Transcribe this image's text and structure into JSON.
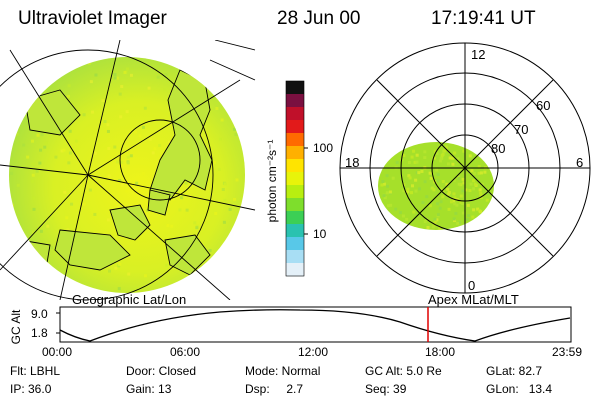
{
  "header": {
    "title": "Ultraviolet Imager",
    "date": "28 Jun 00",
    "time": "17:19:41 UT"
  },
  "colorbar": {
    "unit_label": "photon cm⁻²s⁻¹",
    "ticks": [
      "100",
      "10"
    ],
    "colors": [
      "#111111",
      "#7a1040",
      "#c0102a",
      "#e21a1a",
      "#ff6a00",
      "#ffb000",
      "#ffe400",
      "#e8f40a",
      "#b8ee10",
      "#7ede2c",
      "#3ccf55",
      "#2ac2b0",
      "#58c8e8",
      "#a8def4",
      "#e4f0f8"
    ]
  },
  "geo_map": {
    "label": "Geographic Lat/Lon",
    "disk_color": "#d6f020",
    "land_color": "#b8e63a",
    "outline_color": "#000000"
  },
  "polar_plot": {
    "label": "Apex MLat/MLT",
    "mlt_labels": [
      "12",
      "18",
      "6",
      "0"
    ],
    "mlat_labels": [
      "60",
      "70",
      "80"
    ],
    "aurora_color": "#a6e02a"
  },
  "altitude_plot": {
    "ylabel": "GC Alt",
    "yticks": [
      "9.0",
      "1.8"
    ],
    "xticks": [
      "00:00",
      "06:00",
      "12:00",
      "18:00",
      "23:59"
    ],
    "marker_color": "#e00000"
  },
  "footer": {
    "row1": {
      "flt": "Flt: LBHL",
      "door": "Door: Closed",
      "mode": "Mode: Normal",
      "gc_alt": "GC Alt: 5.0 Re",
      "glat": "GLat:  82.7"
    },
    "row2": {
      "ip": "IP: 36.0",
      "gain": "Gain: 13",
      "dsp": "Dsp:     2.7",
      "seq": "Seq: 39",
      "glon": "GLon:   13.4"
    }
  }
}
